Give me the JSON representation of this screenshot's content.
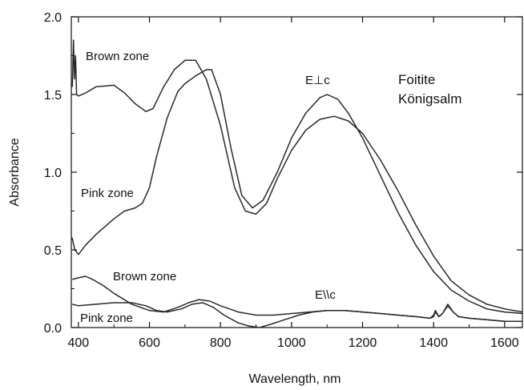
{
  "chart_data": {
    "type": "line",
    "xlabel": "Wavelength, nm",
    "ylabel": "Absorbance",
    "xlim": [
      380,
      1650
    ],
    "ylim": [
      0,
      2.0
    ],
    "x_ticks": [
      400,
      600,
      800,
      1000,
      1200,
      1400,
      1600
    ],
    "y_ticks": [
      0.0,
      0.5,
      1.0,
      1.5,
      2.0
    ],
    "y_tick_labels": [
      "0.0",
      "0.5",
      "1.0",
      "1.5",
      "2.0"
    ],
    "grid": false,
    "annotations": {
      "mineral": "Foitite",
      "locality": "Königsalm",
      "perp_polarization": "E⊥c",
      "par_polarization": "E\\\\c",
      "brown_upper": "Brown zone",
      "pink_upper": "Pink zone",
      "brown_lower": "Brown zone",
      "pink_lower": "Pink zone"
    },
    "series": [
      {
        "color": "#2a2a2a",
        "x": [
          383,
          386,
          389,
          392,
          395,
          400,
          420,
          450,
          500,
          530,
          560,
          590,
          610,
          640,
          670,
          700,
          730,
          760,
          800,
          840,
          870,
          900,
          930,
          960,
          1000,
          1040,
          1080,
          1120,
          1160,
          1200,
          1250,
          1300,
          1350,
          1400,
          1450,
          1500,
          1550,
          1600,
          1650
        ],
        "y": [
          1.55,
          1.85,
          1.6,
          1.75,
          1.5,
          1.49,
          1.51,
          1.55,
          1.56,
          1.51,
          1.44,
          1.39,
          1.41,
          1.55,
          1.66,
          1.72,
          1.72,
          1.6,
          1.3,
          0.9,
          0.75,
          0.73,
          0.8,
          0.96,
          1.14,
          1.27,
          1.34,
          1.36,
          1.33,
          1.25,
          1.08,
          0.88,
          0.66,
          0.46,
          0.3,
          0.21,
          0.15,
          0.12,
          0.1
        ]
      },
      {
        "color": "#2a2a2a",
        "x": [
          382,
          390,
          400,
          420,
          450,
          500,
          530,
          560,
          580,
          600,
          620,
          650,
          680,
          700,
          730,
          760,
          775,
          800,
          830,
          860,
          890,
          920,
          960,
          1000,
          1040,
          1080,
          1100,
          1130,
          1160,
          1200,
          1250,
          1300,
          1350,
          1400,
          1450,
          1500,
          1550,
          1600,
          1650
        ],
        "y": [
          0.58,
          0.5,
          0.47,
          0.53,
          0.6,
          0.7,
          0.75,
          0.77,
          0.8,
          0.9,
          1.1,
          1.35,
          1.52,
          1.57,
          1.62,
          1.66,
          1.66,
          1.5,
          1.15,
          0.85,
          0.77,
          0.82,
          1.0,
          1.22,
          1.38,
          1.48,
          1.5,
          1.47,
          1.38,
          1.22,
          0.98,
          0.74,
          0.53,
          0.36,
          0.24,
          0.17,
          0.12,
          0.1,
          0.09
        ]
      },
      {
        "color": "#2a2a2a",
        "x": [
          383,
          400,
          420,
          440,
          470,
          500,
          550,
          600,
          640,
          680,
          710,
          740,
          770,
          800,
          850,
          900,
          950,
          1000,
          1050,
          1100,
          1150,
          1200,
          1250,
          1300,
          1350,
          1390,
          1400,
          1405,
          1415,
          1425,
          1440,
          1455,
          1470,
          1500,
          1550,
          1600,
          1650
        ],
        "y": [
          0.31,
          0.32,
          0.33,
          0.31,
          0.27,
          0.22,
          0.15,
          0.11,
          0.1,
          0.13,
          0.16,
          0.18,
          0.17,
          0.14,
          0.1,
          0.08,
          0.08,
          0.09,
          0.1,
          0.11,
          0.11,
          0.1,
          0.09,
          0.08,
          0.07,
          0.06,
          0.07,
          0.1,
          0.07,
          0.09,
          0.14,
          0.1,
          0.07,
          0.06,
          0.05,
          0.04,
          0.04
        ]
      },
      {
        "color": "#2a2a2a",
        "x": [
          383,
          400,
          450,
          500,
          550,
          590,
          620,
          650,
          690,
          720,
          750,
          780,
          810,
          850,
          880,
          910,
          940,
          980,
          1020,
          1060,
          1100,
          1150,
          1200,
          1250,
          1300,
          1350,
          1390,
          1400,
          1405,
          1415,
          1425,
          1440,
          1455,
          1470,
          1500,
          1550,
          1600,
          1650
        ],
        "y": [
          0.15,
          0.14,
          0.15,
          0.16,
          0.16,
          0.14,
          0.11,
          0.1,
          0.12,
          0.15,
          0.16,
          0.13,
          0.08,
          0.03,
          0.01,
          0.0,
          0.02,
          0.05,
          0.08,
          0.1,
          0.11,
          0.11,
          0.1,
          0.09,
          0.08,
          0.07,
          0.06,
          0.08,
          0.11,
          0.07,
          0.09,
          0.15,
          0.1,
          0.07,
          0.06,
          0.05,
          0.04,
          0.04
        ]
      }
    ]
  }
}
